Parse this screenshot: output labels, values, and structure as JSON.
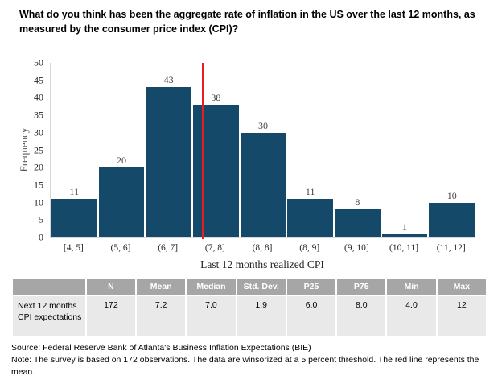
{
  "title": "What do you think has been the aggregate rate of inflation in the US over the last 12 months, as measured by the consumer price index (CPI)?",
  "chart_data": {
    "type": "bar",
    "categories": [
      "[4, 5]",
      "(5, 6]",
      "(6, 7]",
      "(7, 8]",
      "(8, 8]",
      "(8, 9]",
      "(9, 10]",
      "(10, 11]",
      "(11, 12]"
    ],
    "values": [
      11,
      20,
      43,
      38,
      30,
      11,
      8,
      1,
      10
    ],
    "title": "",
    "xlabel": "Last 12 months realized CPI",
    "ylabel": "Frequency",
    "ylim": [
      0,
      50
    ],
    "ytick_step": 5,
    "grid": false,
    "legend": "none",
    "bar_color": "#14496a",
    "red_line": {
      "value": 7.2,
      "represents": "mean",
      "color": "#ed1c24",
      "axis_min": 4,
      "axis_span": 9
    }
  },
  "table": {
    "columns": [
      "",
      "N",
      "Mean",
      "Median",
      "Std. Dev.",
      "P25",
      "P75",
      "Min",
      "Max"
    ],
    "rows": [
      {
        "label": "Next 12 months CPI expectations",
        "values": [
          "172",
          "7.2",
          "7.0",
          "1.9",
          "6.0",
          "8.0",
          "4.0",
          "12"
        ]
      }
    ],
    "header_bg": "#a6a6a6",
    "row_bg": "#e9e9e9"
  },
  "notes": {
    "source": "Source: Federal Reserve Bank of Atlanta's Business Inflation Expectations (BIE)",
    "note": "Note: The survey is based on 172 observations. The data are winsorized at a 5 percent threshold. The red line represents the mean."
  }
}
